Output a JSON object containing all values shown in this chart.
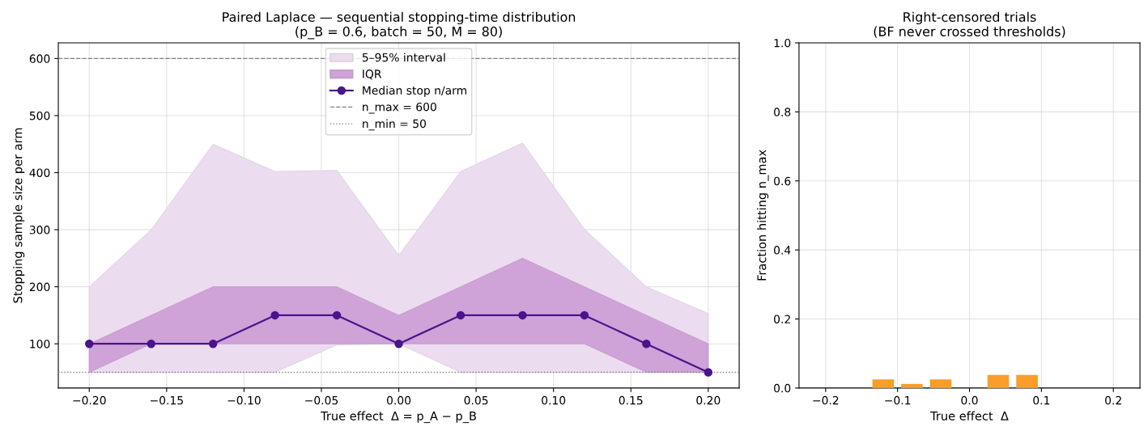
{
  "chart_data": [
    {
      "type": "line",
      "title": "Paired Laplace — sequential stopping-time distribution\n(p_B = 0.6, batch = 50, M = 80)",
      "xlabel": "True effect  Δ = p_A − p_B",
      "ylabel": "Stopping sample size per arm",
      "x": [
        -0.2,
        -0.16,
        -0.12,
        -0.08,
        -0.04,
        0.0,
        0.04,
        0.08,
        0.12,
        0.16,
        0.2
      ],
      "series": [
        {
          "name": "5–95% interval",
          "type": "area",
          "color": "#ecdcef",
          "values": [
            null,
            null,
            null,
            null,
            null,
            null,
            null,
            null,
            null,
            null,
            null
          ],
          "lower": [
            50,
            50,
            50,
            50,
            98,
            100,
            50,
            50,
            50,
            50,
            50
          ],
          "upper": [
            200,
            300,
            450,
            402,
            404,
            255,
            402,
            452,
            301,
            200,
            153
          ]
        },
        {
          "name": "IQR",
          "type": "area",
          "color": "#cfa2d8",
          "values": [
            null,
            null,
            null,
            null,
            null,
            null,
            null,
            null,
            null,
            null,
            null
          ],
          "lower": [
            50,
            100,
            100,
            100,
            100,
            100,
            100,
            100,
            100,
            50,
            50
          ],
          "upper": [
            100,
            150,
            200,
            200,
            200,
            150,
            200,
            250,
            200,
            150,
            100
          ]
        },
        {
          "name": "Median stop n/arm",
          "type": "line",
          "color": "#4a148c",
          "marker": "circle",
          "values": [
            100,
            100,
            100,
            150,
            150,
            100,
            150,
            150,
            150,
            100,
            50
          ]
        }
      ],
      "ref_lines": [
        {
          "axis": "y",
          "value": 600,
          "label": "n_max = 600",
          "color": "#808080",
          "line_style": "dashed"
        },
        {
          "axis": "y",
          "value": 50,
          "label": "n_min = 50",
          "color": "#808080",
          "line_style": "dotted"
        }
      ],
      "xlim": [
        -0.22,
        0.22
      ],
      "ylim": [
        22.5,
        627.5
      ],
      "xticks": [
        {
          "value": -0.2,
          "label": "−0.20"
        },
        {
          "value": -0.15,
          "label": "−0.15"
        },
        {
          "value": -0.1,
          "label": "−0.10"
        },
        {
          "value": -0.05,
          "label": "−0.05"
        },
        {
          "value": 0.0,
          "label": "0.00"
        },
        {
          "value": 0.05,
          "label": "0.05"
        },
        {
          "value": 0.1,
          "label": "0.10"
        },
        {
          "value": 0.15,
          "label": "0.15"
        },
        {
          "value": 0.2,
          "label": "0.20"
        }
      ],
      "yticks": [
        100,
        200,
        300,
        400,
        500,
        600
      ],
      "grid": true,
      "legend": "top"
    },
    {
      "type": "bar",
      "title": "Right-censored trials\n(BF never crossed thresholds)",
      "xlabel": "True effect  Δ",
      "ylabel": "Fraction hitting n_max",
      "x": [
        -0.12,
        -0.08,
        -0.04,
        0.04,
        0.08
      ],
      "values": [
        0.025,
        0.012,
        0.025,
        0.038,
        0.038
      ],
      "color": "#f99e2b",
      "xlim": [
        -0.237,
        0.237
      ],
      "ylim": [
        0,
        1
      ],
      "xticks": [
        {
          "value": -0.2,
          "label": "−0.2"
        },
        {
          "value": -0.1,
          "label": "−0.1"
        },
        {
          "value": 0.0,
          "label": "0.0"
        },
        {
          "value": 0.1,
          "label": "0.1"
        },
        {
          "value": 0.2,
          "label": "0.2"
        }
      ],
      "yticks": [
        {
          "value": 0.0,
          "label": "0.0"
        },
        {
          "value": 0.2,
          "label": "0.2"
        },
        {
          "value": 0.4,
          "label": "0.4"
        },
        {
          "value": 0.6,
          "label": "0.6"
        },
        {
          "value": 0.8,
          "label": "0.8"
        },
        {
          "value": 1.0,
          "label": "1.0"
        }
      ],
      "grid": true
    }
  ]
}
